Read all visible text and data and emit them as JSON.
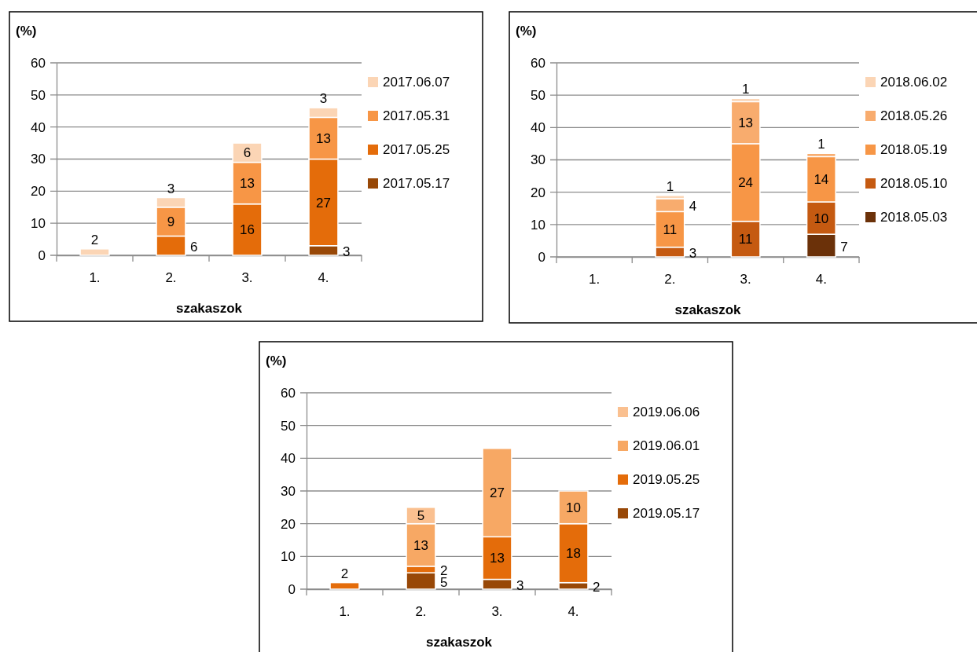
{
  "chart_data": [
    {
      "type": "bar",
      "stacked": true,
      "ylabel": "(%)",
      "xlabel": "szakaszok",
      "categories": [
        "1.",
        "2.",
        "3.",
        "4."
      ],
      "ylim": [
        0,
        60
      ],
      "yticks": [
        0,
        10,
        20,
        30,
        40,
        50,
        60
      ],
      "grid": "y",
      "legend": "right",
      "data_labels": true,
      "series": [
        {
          "name": "2017.05.17",
          "color": "#984807",
          "values": [
            null,
            null,
            null,
            3
          ]
        },
        {
          "name": "2017.05.25",
          "color": "#e46c0a",
          "values": [
            null,
            6,
            16,
            27
          ]
        },
        {
          "name": "2017.05.31",
          "color": "#f79646",
          "values": [
            null,
            9,
            13,
            13
          ]
        },
        {
          "name": "2017.06.07",
          "color": "#fbd5b5",
          "values": [
            2,
            3,
            6,
            3
          ]
        }
      ]
    },
    {
      "type": "bar",
      "stacked": true,
      "ylabel": "(%)",
      "xlabel": "szakaszok",
      "categories": [
        "1.",
        "2.",
        "3.",
        "4."
      ],
      "ylim": [
        0,
        60
      ],
      "yticks": [
        0,
        10,
        20,
        30,
        40,
        50,
        60
      ],
      "grid": "y",
      "legend": "right",
      "data_labels": true,
      "series": [
        {
          "name": "2018.05.03",
          "color": "#6b3109",
          "values": [
            null,
            null,
            null,
            7
          ]
        },
        {
          "name": "2018.05.10",
          "color": "#c55a11",
          "values": [
            null,
            3,
            11,
            10
          ]
        },
        {
          "name": "2018.05.19",
          "color": "#f79646",
          "values": [
            null,
            11,
            24,
            14
          ]
        },
        {
          "name": "2018.05.26",
          "color": "#f8ac6e",
          "values": [
            null,
            4,
            13,
            1
          ]
        },
        {
          "name": "2018.06.02",
          "color": "#fbd5b5",
          "values": [
            null,
            1,
            1,
            null
          ]
        }
      ]
    },
    {
      "type": "bar",
      "stacked": true,
      "ylabel": "(%)",
      "xlabel": "szakaszok",
      "categories": [
        "1.",
        "2.",
        "3.",
        "4."
      ],
      "ylim": [
        0,
        60
      ],
      "yticks": [
        0,
        10,
        20,
        30,
        40,
        50,
        60
      ],
      "grid": "y",
      "legend": "right",
      "data_labels": true,
      "series": [
        {
          "name": "2019.05.17",
          "color": "#984807",
          "values": [
            null,
            5,
            3,
            2
          ]
        },
        {
          "name": "2019.05.25",
          "color": "#e46c0a",
          "values": [
            2,
            2,
            13,
            18
          ]
        },
        {
          "name": "2019.06.01",
          "color": "#f7a864",
          "values": [
            null,
            13,
            27,
            10
          ]
        },
        {
          "name": "2019.06.06",
          "color": "#fac090",
          "values": [
            null,
            5,
            null,
            null
          ]
        }
      ]
    }
  ]
}
